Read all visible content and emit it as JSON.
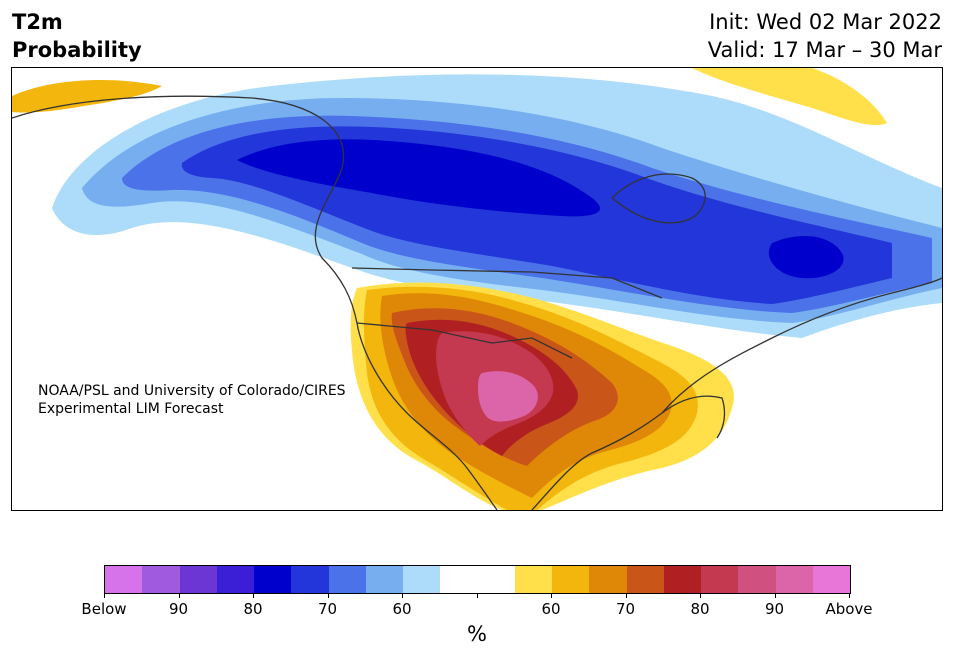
{
  "header": {
    "title_line1": "T2m",
    "title_line2": "Probability",
    "init": "Init: Wed 02 Mar 2022",
    "valid": "Valid: 17 Mar – 30 Mar"
  },
  "map": {
    "credit_line1": "NOAA/PSL and University of Colorado/CIRES",
    "credit_line2": "Experimental LIM Forecast",
    "region": "North America"
  },
  "colorbar": {
    "colors": [
      "#d673ea",
      "#a05ae0",
      "#6b36d4",
      "#3a1fd6",
      "#0000cc",
      "#2236d9",
      "#4b72e8",
      "#76aef0",
      "#acdcfa",
      "#ffffff",
      "#ffffff",
      "#ffe04a",
      "#f3b60c",
      "#df8808",
      "#c95618",
      "#b02022",
      "#c43850",
      "#d05080",
      "#dc64a8",
      "#e876d8"
    ],
    "tick_labels": [
      "Below",
      "90",
      "80",
      "70",
      "60",
      "",
      "60",
      "70",
      "80",
      "90",
      "Above"
    ],
    "unit": "%"
  }
}
